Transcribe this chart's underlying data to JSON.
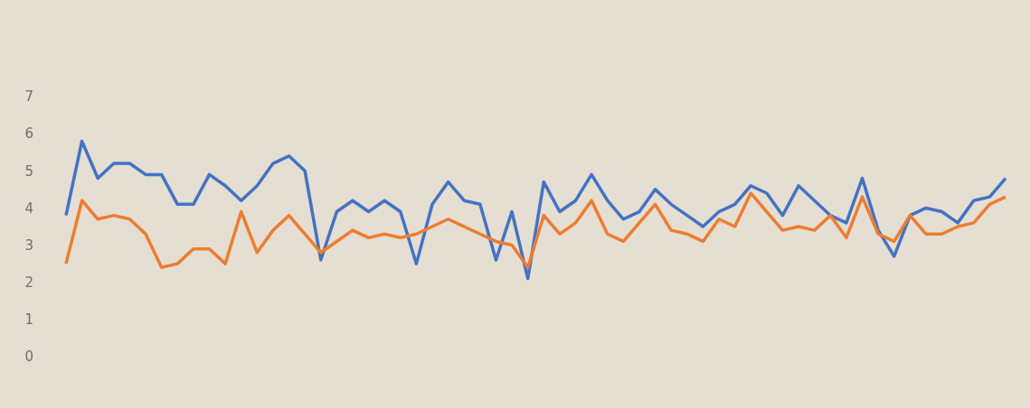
{
  "chart_data": {
    "type": "line",
    "categories": [
      null,
      null,
      null,
      null,
      null,
      null,
      null,
      null,
      null,
      null,
      null,
      null,
      null,
      null,
      null,
      null,
      null,
      null,
      null,
      null,
      null,
      null,
      null,
      null,
      null,
      null,
      null,
      null,
      null,
      null,
      null,
      null,
      null,
      null,
      null,
      null,
      null,
      null,
      null,
      null,
      null,
      null,
      null,
      null,
      null,
      null,
      null,
      null,
      null,
      null,
      null,
      null,
      null,
      null,
      null,
      null,
      null,
      null,
      null,
      null
    ],
    "series": [
      {
        "color": "#4472c4",
        "values": [
          3.8,
          5.8,
          4.8,
          5.2,
          5.2,
          4.9,
          4.9,
          4.1,
          4.1,
          4.9,
          4.6,
          4.2,
          4.6,
          5.2,
          5.4,
          5.0,
          2.6,
          3.9,
          4.2,
          3.9,
          4.2,
          3.9,
          2.5,
          4.1,
          4.7,
          4.2,
          4.1,
          2.6,
          3.9,
          2.1,
          4.7,
          3.9,
          4.2,
          4.9,
          4.2,
          3.7,
          3.9,
          4.5,
          4.1,
          3.8,
          3.5,
          3.9,
          4.1,
          4.6,
          4.4,
          3.8,
          4.6,
          4.2,
          3.8,
          3.6,
          4.8,
          3.4,
          2.7,
          3.8,
          4.0,
          3.9,
          3.6,
          4.2,
          4.3,
          4.8
        ]
      },
      {
        "color": "#ed7d31",
        "values": [
          2.5,
          4.2,
          3.7,
          3.8,
          3.7,
          3.3,
          2.4,
          2.5,
          2.9,
          2.9,
          2.5,
          3.9,
          2.8,
          3.4,
          3.8,
          3.3,
          2.8,
          3.1,
          3.4,
          3.2,
          3.3,
          3.2,
          3.3,
          3.5,
          3.7,
          3.5,
          3.3,
          3.1,
          3.0,
          2.4,
          3.8,
          3.3,
          3.6,
          4.2,
          3.3,
          3.1,
          3.6,
          4.1,
          3.4,
          3.3,
          3.1,
          3.7,
          3.5,
          4.4,
          3.9,
          3.4,
          3.5,
          3.4,
          3.8,
          3.2,
          4.3,
          3.3,
          3.1,
          3.8,
          3.3,
          3.3,
          3.5,
          3.6,
          4.1,
          4.3
        ]
      }
    ],
    "ylim": [
      0,
      7
    ],
    "yticks": [
      0,
      1,
      2,
      3,
      4,
      5,
      6,
      7
    ],
    "grid": false,
    "legend": false,
    "marker": "none",
    "line_style": "solid",
    "tick_labels": "y"
  }
}
